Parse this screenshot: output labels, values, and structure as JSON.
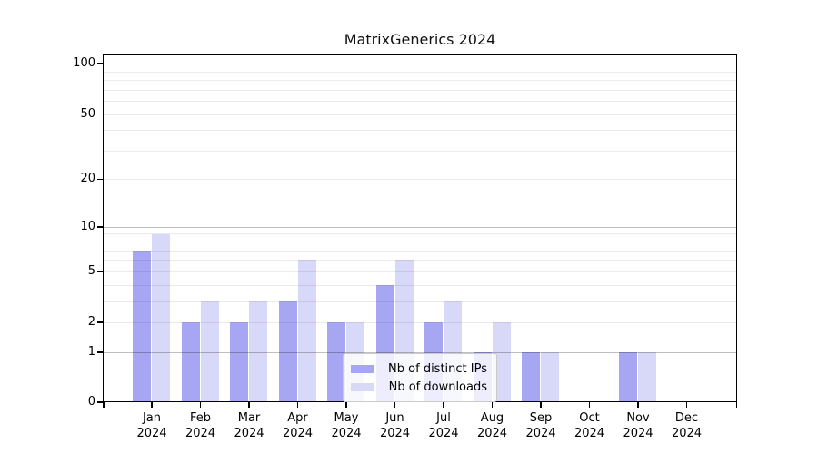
{
  "title": "MatrixGenerics 2024",
  "chart_data": {
    "type": "bar",
    "title": "MatrixGenerics 2024",
    "categories": [
      "Jan 2024",
      "Feb 2024",
      "Mar 2024",
      "Apr 2024",
      "May 2024",
      "Jun 2024",
      "Jul 2024",
      "Aug 2024",
      "Sep 2024",
      "Oct 2024",
      "Nov 2024",
      "Dec 2024"
    ],
    "series": [
      {
        "name": "Nb of distinct IPs",
        "color": "#a6a6f2",
        "values": [
          7,
          2,
          2,
          3,
          2,
          4,
          2,
          1,
          1,
          0,
          1,
          0
        ]
      },
      {
        "name": "Nb of downloads",
        "color": "#d8d8f8",
        "values": [
          9,
          3,
          3,
          6,
          2,
          6,
          3,
          2,
          1,
          0,
          1,
          0
        ]
      }
    ],
    "xlabel": "",
    "ylabel": "",
    "yscale": "log1p",
    "yticks": [
      0,
      1,
      2,
      5,
      10,
      20,
      50,
      100
    ],
    "ylim": [
      0,
      113
    ],
    "grid": "horizontal, minor log gridlines at 2-9 and 20-90, major at 1/10/100",
    "legend_position": "lower center",
    "colors": {
      "grid_minor": "#ebebeb",
      "grid_major": "#bfbfbf",
      "spine": "#000000",
      "background": "#ffffff",
      "text": "#000000"
    }
  }
}
